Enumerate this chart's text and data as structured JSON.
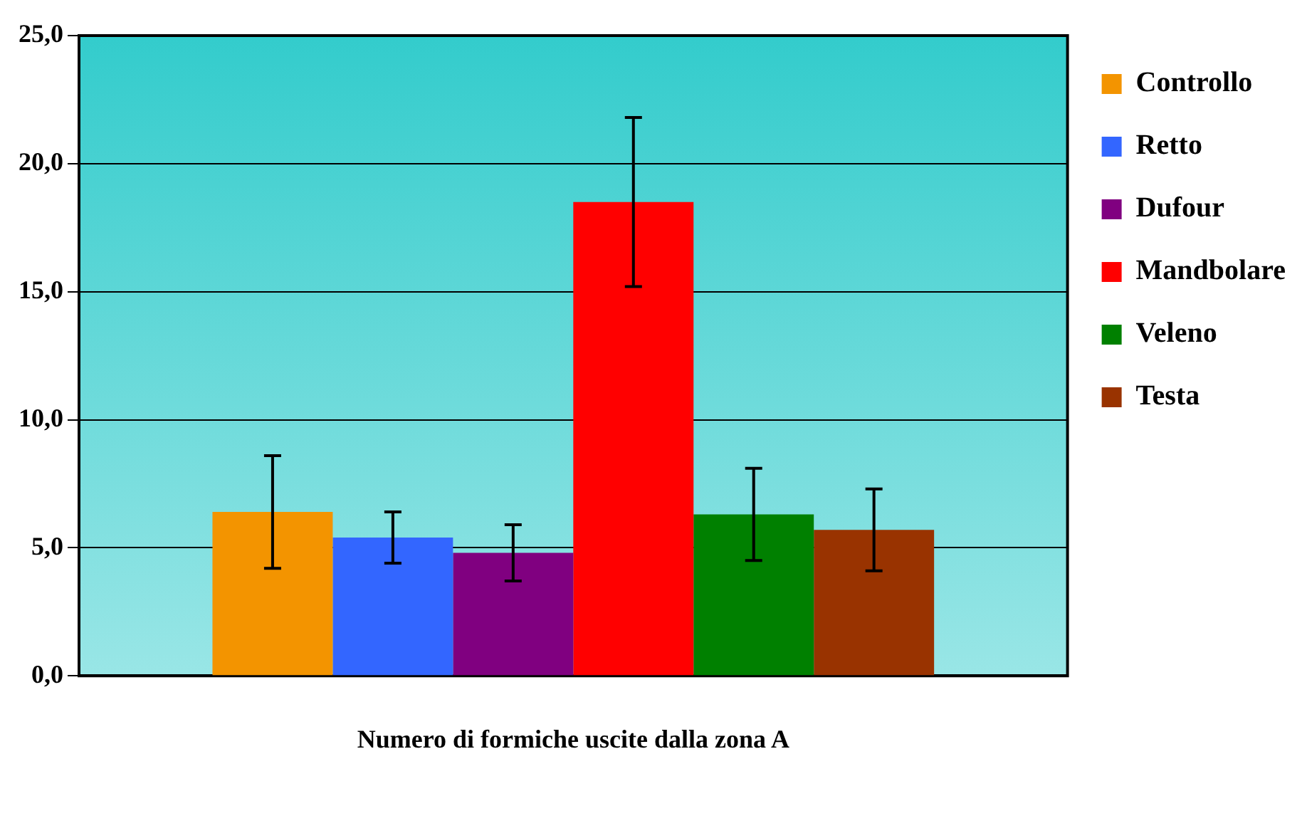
{
  "chart_data": {
    "type": "bar",
    "xlabel": "Numero di formiche uscite dalla zona A",
    "categories": [
      null
    ],
    "series": [
      {
        "name": "Controllo",
        "color": "#f39400",
        "values": [
          6.4
        ],
        "errors": [
          2.2
        ]
      },
      {
        "name": "Retto",
        "color": "#3366ff",
        "values": [
          5.4
        ],
        "errors": [
          1.0
        ]
      },
      {
        "name": "Dufour",
        "color": "#800080",
        "values": [
          4.8
        ],
        "errors": [
          1.1
        ]
      },
      {
        "name": "Mandbolare",
        "color": "#ff0000",
        "values": [
          18.5
        ],
        "errors": [
          3.3
        ]
      },
      {
        "name": "Veleno",
        "color": "#008000",
        "values": [
          6.3
        ],
        "errors": [
          1.8
        ]
      },
      {
        "name": "Testa",
        "color": "#993300",
        "values": [
          5.7
        ],
        "errors": [
          1.6
        ]
      }
    ],
    "ylim": [
      0,
      25
    ],
    "yticks": [
      {
        "value": 0,
        "label": "0,0"
      },
      {
        "value": 5,
        "label": "5,0"
      },
      {
        "value": 10,
        "label": "10,0"
      },
      {
        "value": 15,
        "label": "15,0"
      },
      {
        "value": 20,
        "label": "20,0"
      },
      {
        "value": 25,
        "label": "25,0"
      }
    ],
    "grid": "y",
    "legend": "right"
  }
}
